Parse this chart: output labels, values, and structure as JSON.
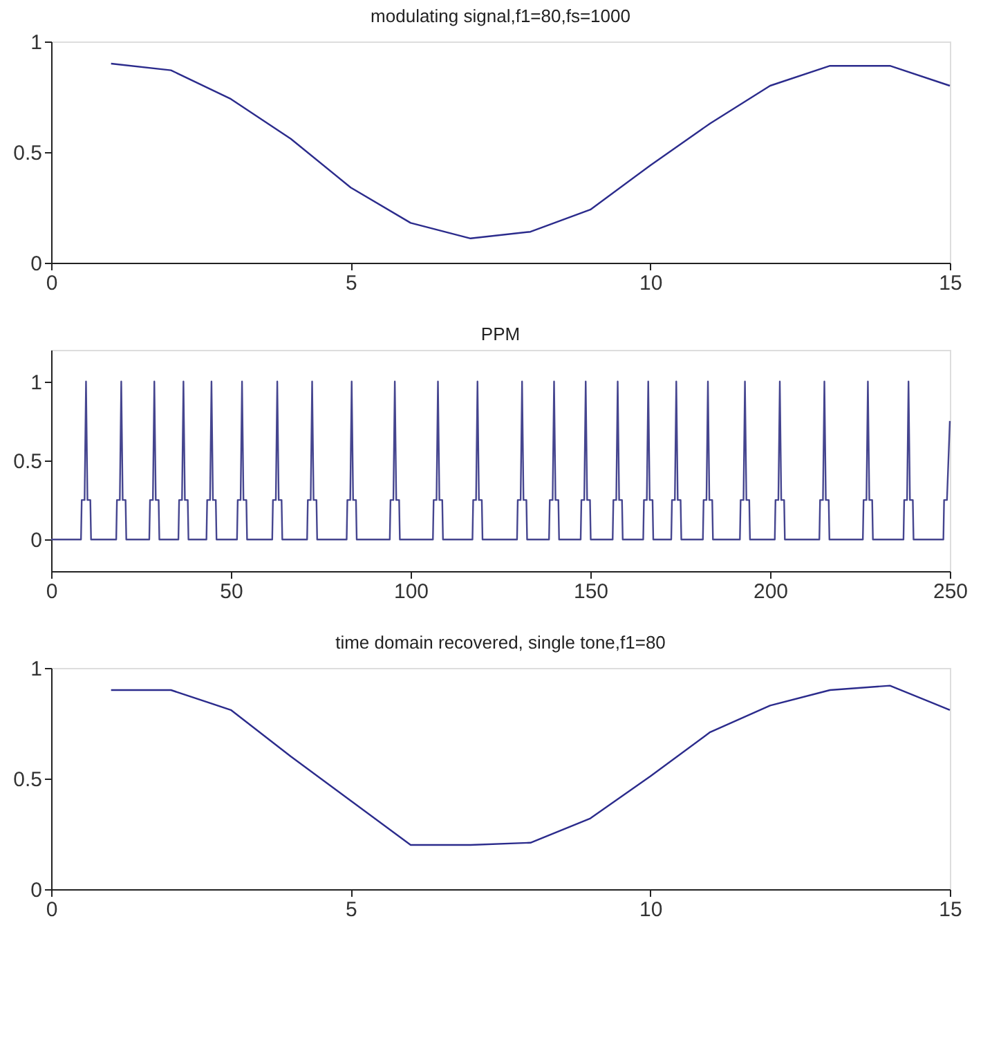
{
  "chart_data": [
    {
      "type": "line",
      "title": "modulating signal,f1=80,fs=1000",
      "color": "#2b2b8c",
      "x": [
        1,
        2,
        3,
        4,
        5,
        6,
        7,
        8,
        9,
        10,
        11,
        12,
        13,
        14,
        15
      ],
      "values": [
        0.9,
        0.87,
        0.74,
        0.56,
        0.34,
        0.18,
        0.11,
        0.14,
        0.24,
        0.44,
        0.63,
        0.8,
        0.89,
        0.89,
        0.8
      ],
      "xlim": [
        0,
        15
      ],
      "ylim": [
        0,
        1
      ],
      "xticks": [
        0,
        5,
        10,
        15
      ],
      "yticks": [
        0,
        0.5,
        1
      ],
      "grid": false
    },
    {
      "type": "line",
      "title": "PPM",
      "color": "#45458f",
      "x": [
        0,
        8.3,
        8.5,
        9.3,
        9.7,
        10.1,
        10.9,
        11.1,
        18.1,
        18.3,
        19.1,
        19.5,
        19.9,
        20.7,
        20.9,
        27.3,
        27.5,
        28.3,
        28.7,
        29.1,
        29.9,
        30.1,
        35.4,
        35.6,
        36.4,
        36.8,
        37.2,
        38.0,
        38.2,
        43.2,
        43.4,
        44.2,
        44.6,
        45.0,
        45.8,
        46.0,
        51.7,
        51.9,
        52.7,
        53.1,
        53.5,
        54.3,
        54.5,
        61.5,
        61.7,
        62.5,
        62.9,
        63.3,
        64.1,
        64.3,
        71.2,
        71.4,
        72.2,
        72.6,
        73.0,
        73.8,
        74.0,
        82.2,
        82.4,
        83.2,
        83.6,
        84.0,
        84.8,
        85.0,
        94.2,
        94.4,
        95.2,
        95.6,
        96.0,
        96.8,
        97.0,
        106.2,
        106.4,
        107.2,
        107.6,
        108.0,
        108.8,
        109.0,
        117.2,
        117.4,
        118.2,
        118.6,
        119.0,
        119.8,
        120.0,
        129.6,
        129.8,
        130.6,
        131.0,
        131.4,
        132.2,
        132.4,
        138.5,
        138.7,
        139.5,
        139.9,
        140.3,
        141.1,
        141.3,
        147.3,
        147.5,
        148.3,
        148.7,
        149.1,
        149.9,
        150.1,
        156.2,
        156.4,
        157.2,
        157.6,
        158.0,
        158.8,
        159.0,
        164.7,
        164.9,
        165.7,
        166.1,
        166.5,
        167.3,
        167.5,
        172.5,
        172.7,
        173.5,
        173.9,
        174.3,
        175.1,
        175.3,
        181.3,
        181.5,
        182.3,
        182.7,
        183.1,
        183.9,
        184.1,
        191.6,
        191.8,
        192.6,
        193.0,
        193.4,
        194.2,
        194.4,
        201.3,
        201.5,
        202.3,
        202.7,
        203.1,
        203.9,
        204.1,
        213.7,
        213.9,
        214.7,
        215.1,
        215.5,
        216.3,
        216.5,
        225.8,
        226.0,
        226.8,
        227.2,
        227.6,
        228.4,
        228.6,
        237.1,
        237.3,
        238.1,
        238.5,
        238.9,
        239.7,
        239.9,
        248.2,
        248.4,
        249.2,
        250
      ],
      "values": [
        0,
        0,
        0.25,
        0.25,
        1,
        0.25,
        0.25,
        0,
        0,
        0.25,
        0.25,
        1,
        0.25,
        0.25,
        0,
        0,
        0.25,
        0.25,
        1,
        0.25,
        0.25,
        0,
        0,
        0.25,
        0.25,
        1,
        0.25,
        0.25,
        0,
        0,
        0.25,
        0.25,
        1,
        0.25,
        0.25,
        0,
        0,
        0.25,
        0.25,
        1,
        0.25,
        0.25,
        0,
        0,
        0.25,
        0.25,
        1,
        0.25,
        0.25,
        0,
        0,
        0.25,
        0.25,
        1,
        0.25,
        0.25,
        0,
        0,
        0.25,
        0.25,
        1,
        0.25,
        0.25,
        0,
        0,
        0.25,
        0.25,
        1,
        0.25,
        0.25,
        0,
        0,
        0.25,
        0.25,
        1,
        0.25,
        0.25,
        0,
        0,
        0.25,
        0.25,
        1,
        0.25,
        0.25,
        0,
        0,
        0.25,
        0.25,
        1,
        0.25,
        0.25,
        0,
        0,
        0.25,
        0.25,
        1,
        0.25,
        0.25,
        0,
        0,
        0.25,
        0.25,
        1,
        0.25,
        0.25,
        0,
        0,
        0.25,
        0.25,
        1,
        0.25,
        0.25,
        0,
        0,
        0.25,
        0.25,
        1,
        0.25,
        0.25,
        0,
        0,
        0.25,
        0.25,
        1,
        0.25,
        0.25,
        0,
        0,
        0.25,
        0.25,
        1,
        0.25,
        0.25,
        0,
        0,
        0.25,
        0.25,
        1,
        0.25,
        0.25,
        0,
        0,
        0.25,
        0.25,
        1,
        0.25,
        0.25,
        0,
        0,
        0.25,
        0.25,
        1,
        0.25,
        0.25,
        0,
        0,
        0.25,
        0.25,
        1,
        0.25,
        0.25,
        0,
        0,
        0.25,
        0.25,
        1,
        0.25,
        0.25,
        0,
        0,
        0.25,
        0.25,
        0.75
      ],
      "xlim": [
        0,
        250
      ],
      "ylim": [
        -0.2,
        1.2
      ],
      "xticks": [
        0,
        50,
        100,
        150,
        200,
        250
      ],
      "yticks": [
        0,
        0.5,
        1
      ],
      "grid": false
    },
    {
      "type": "line",
      "title": "time domain recovered, single tone,f1=80",
      "color": "#2b2b8c",
      "x": [
        1,
        2,
        3,
        4,
        5,
        6,
        7,
        8,
        9,
        10,
        11,
        12,
        13,
        14,
        15
      ],
      "values": [
        0.9,
        0.9,
        0.81,
        0.6,
        0.4,
        0.2,
        0.2,
        0.21,
        0.32,
        0.51,
        0.71,
        0.83,
        0.9,
        0.92,
        0.81
      ],
      "xlim": [
        0,
        15
      ],
      "ylim": [
        0,
        1
      ],
      "xticks": [
        0,
        5,
        10,
        15
      ],
      "yticks": [
        0,
        0.5,
        1
      ],
      "grid": false
    }
  ]
}
